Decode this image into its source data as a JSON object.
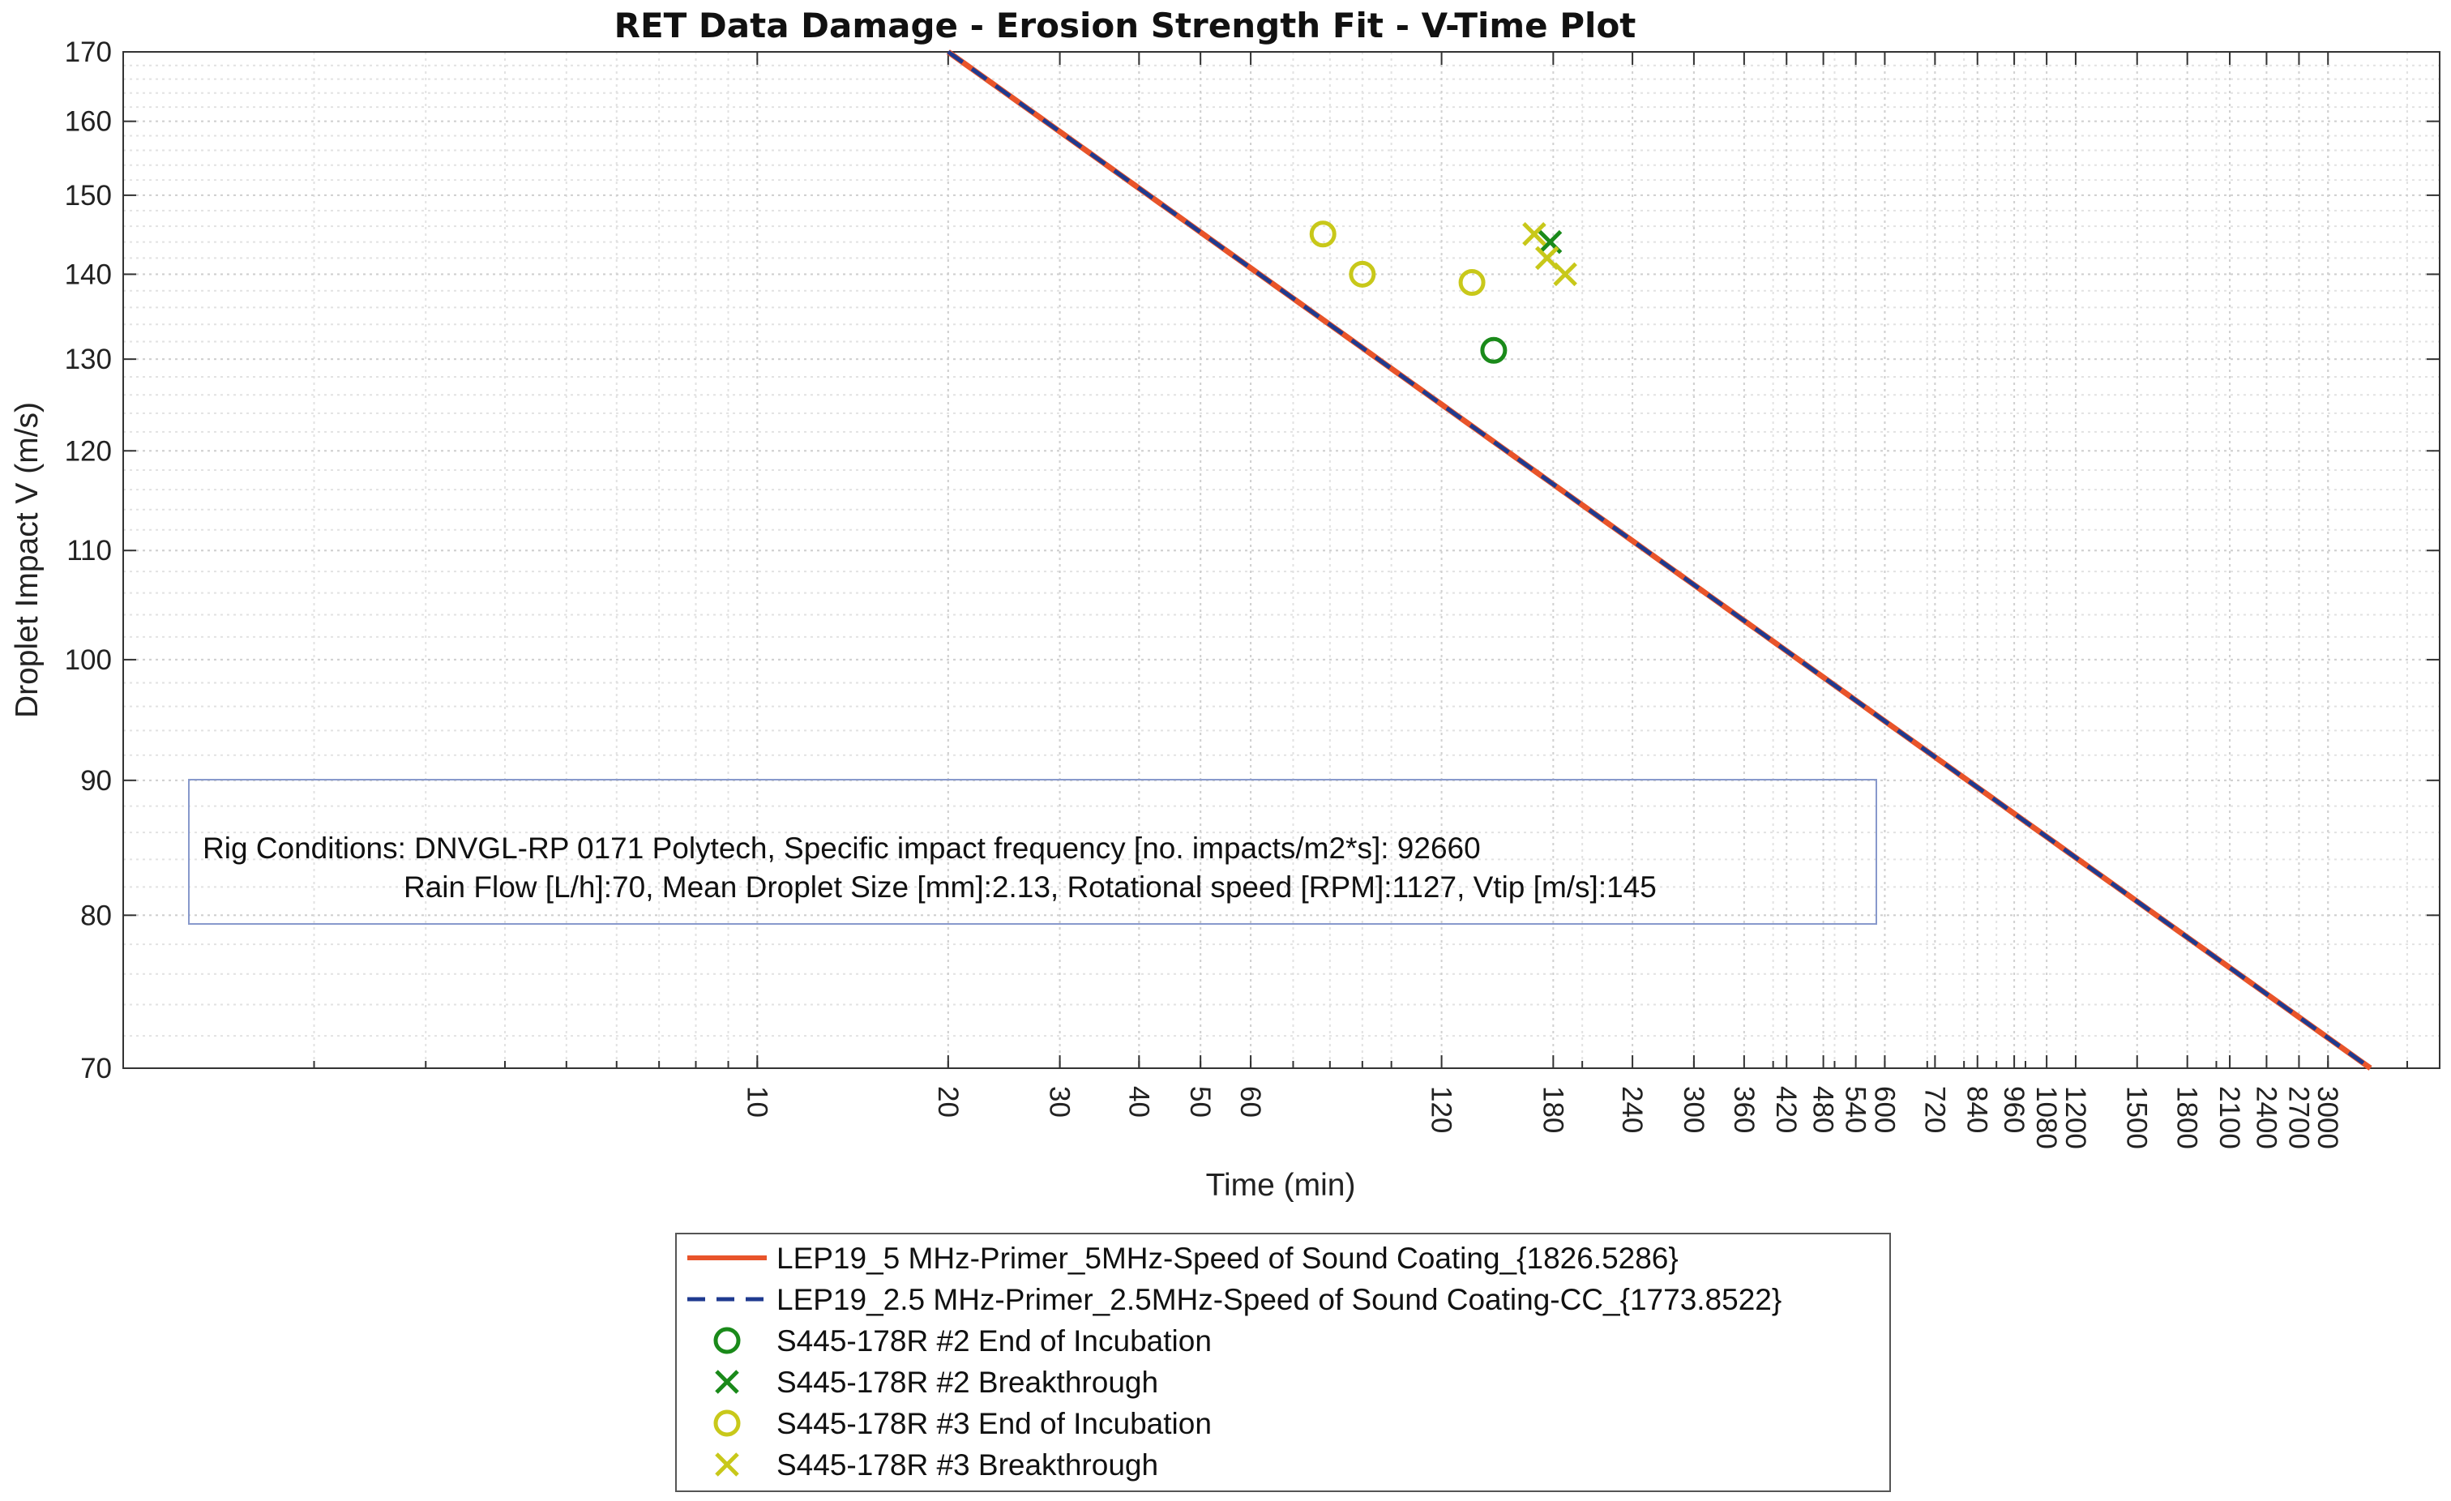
{
  "chart_data": {
    "type": "line",
    "title": "RET Data Damage - Erosion Strength Fit - V-Time Plot",
    "xlabel": "Time (min)",
    "ylabel": "Droplet Impact V (m/s)",
    "xscale": "log",
    "yscale": "log",
    "xlim": [
      1,
      4500
    ],
    "ylim": [
      70,
      170
    ],
    "x_ticks": [
      10,
      20,
      30,
      40,
      50,
      60,
      120,
      180,
      240,
      300,
      360,
      420,
      480,
      540,
      600,
      720,
      840,
      960,
      1080,
      1200,
      1500,
      1800,
      2100,
      2400,
      2700,
      3000
    ],
    "x_tick_labels": [
      "10",
      "20",
      "30",
      "40",
      "50",
      "60",
      "120",
      "180",
      "240",
      "300",
      "360",
      "420",
      "480",
      "540",
      "600",
      "720",
      "840",
      "960",
      "1080",
      "1200",
      "1500",
      "1800",
      "2100",
      "2400",
      "2700",
      "3000"
    ],
    "y_ticks": [
      70,
      80,
      90,
      100,
      110,
      120,
      130,
      140,
      150,
      160,
      170
    ],
    "y_tick_labels": [
      "70",
      "80",
      "90",
      "100",
      "110",
      "120",
      "130",
      "140",
      "150",
      "160",
      "170"
    ],
    "grid": true,
    "series": [
      {
        "name": "LEP19_5 MHz-Primer_5MHz-Speed of Sound Coating_{1826.5286}",
        "kind": "line",
        "style": "solid",
        "color": "#e8542a",
        "x": [
          20,
          3500
        ],
        "y": [
          170,
          70
        ]
      },
      {
        "name": "LEP19_2.5 MHz-Primer_2.5MHz-Speed of Sound Coating-CC_{1773.8522}",
        "kind": "line",
        "style": "dashed",
        "color": "#1f3a8f",
        "x": [
          20,
          3500
        ],
        "y": [
          170,
          70
        ]
      },
      {
        "name": "S445-178R #2 End of Incubation",
        "kind": "marker",
        "marker": "circle",
        "color": "#1a8a1a",
        "x": [
          145
        ],
        "y": [
          131
        ]
      },
      {
        "name": "S445-178R #2 Breakthrough",
        "kind": "marker",
        "marker": "x",
        "color": "#1a8a1a",
        "x": [
          178
        ],
        "y": [
          144
        ]
      },
      {
        "name": "S445-178R #3 End of Incubation",
        "kind": "marker",
        "marker": "circle",
        "color": "#c8c81a",
        "x": [
          78,
          90,
          134
        ],
        "y": [
          145,
          140,
          139
        ]
      },
      {
        "name": "S445-178R #3 Breakthrough",
        "kind": "marker",
        "marker": "x",
        "color": "#c8c81a",
        "x": [
          168,
          176,
          188
        ],
        "y": [
          145,
          142,
          140
        ]
      }
    ],
    "annotation": {
      "line1": "Rig Conditions: DNVGL-RP 0171 Polytech,  Specific impact frequency [no. impacts/m2*s]: 92660",
      "line2": "Rain Flow [L/h]:70, Mean Droplet Size [mm]:2.13, Rotational speed [RPM]:1127, Vtip [m/s]:145"
    },
    "legend_position": "bottom-center"
  }
}
